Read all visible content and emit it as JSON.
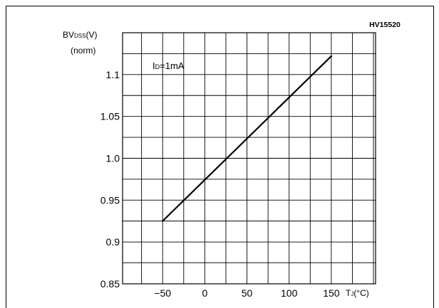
{
  "chart_data": {
    "type": "line",
    "figure_code": "HV15520",
    "ylabel": "BV",
    "ylabel_sub": "DSS",
    "ylabel_unit": "(V)",
    "ylabel_line2": "(norm)",
    "xlabel": "T",
    "xlabel_sub": "J",
    "xlabel_unit": "(°C)",
    "annotation_main": "I",
    "annotation_sub": "D",
    "annotation_rest": "=1mA",
    "xlim": [
      -97.5,
      202.5
    ],
    "ylim": [
      0.85,
      1.15
    ],
    "x_ticks": [
      -50,
      0,
      50,
      100,
      150
    ],
    "x_tick_labels": [
      "−50",
      "0",
      "50",
      "100",
      "150"
    ],
    "y_ticks": [
      0.85,
      0.9,
      0.95,
      1.0,
      1.05,
      1.1
    ],
    "y_tick_labels": [
      "0.85",
      "0.9",
      "0.95",
      "1.0",
      "1.05",
      "1.1"
    ],
    "grid": true,
    "series": [
      {
        "x": [
          -50,
          150
        ],
        "y": [
          0.925,
          1.122
        ]
      }
    ]
  }
}
